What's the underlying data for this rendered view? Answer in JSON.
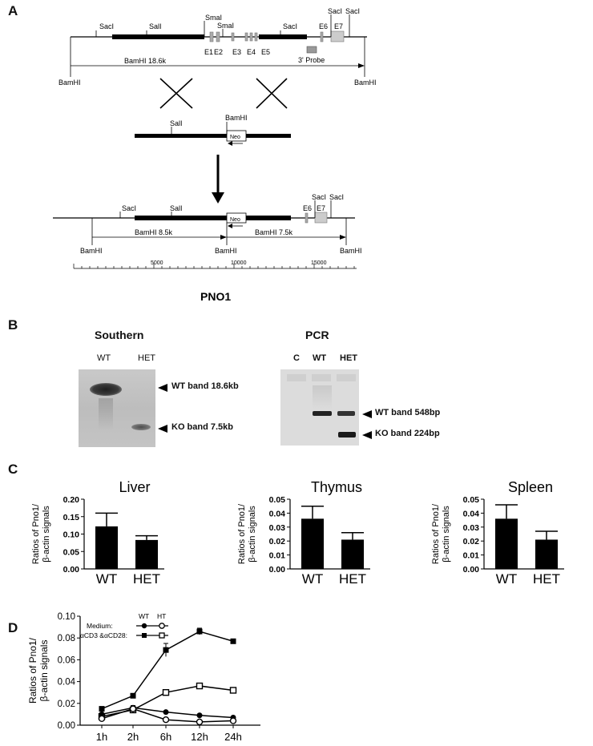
{
  "panels": [
    "A",
    "B",
    "C",
    "D"
  ],
  "panel_a": {
    "wt_labels": [
      "SacI",
      "SalI",
      "SmaI",
      "SmaI",
      "SacI",
      "SacI",
      "SacI"
    ],
    "exons": [
      "E1",
      "E2",
      "E3",
      "E4",
      "E5",
      "E6",
      "E7"
    ],
    "probe_label": "3' Probe",
    "wt_fragment": "BamHI 18.6k",
    "bamhi": "BamHI",
    "vector_sali": "SalI",
    "vector_bamhi": "BamHI",
    "neo": "Neo",
    "ko_labels": [
      "SacI",
      "SalI",
      "SacI",
      "SacI"
    ],
    "ko_exons": [
      "E6",
      "E7"
    ],
    "ko_frag_left": "BamHI 8.5k",
    "ko_frag_right": "BamHI 7.5k",
    "scale_ticks": [
      "5000",
      "10000",
      "15000"
    ],
    "gene_name": "PNO1"
  },
  "panel_b": {
    "southern_title": "Southern",
    "southern_lanes": [
      "WT",
      "HET"
    ],
    "southern_bands": [
      "WT band 18.6kb",
      "KO band 7.5kb"
    ],
    "pcr_title": "PCR",
    "pcr_lanes": [
      "C",
      "WT",
      "HET"
    ],
    "pcr_bands": [
      "WT band 548bp",
      "KO band 224bp"
    ]
  },
  "chart_data": [
    {
      "type": "bar",
      "title": "Liver",
      "ylabel": "Ratios of Pno1/ β-actin signals",
      "categories": [
        "WT",
        "HET"
      ],
      "values": [
        0.122,
        0.083
      ],
      "errors": [
        0.038,
        0.012
      ],
      "ylim": [
        0,
        0.2
      ],
      "yticks": [
        "0.00",
        "0.05",
        "0.10",
        "0.15",
        "0.20"
      ]
    },
    {
      "type": "bar",
      "title": "Thymus",
      "ylabel": "Ratios of Pno1/ β-actin signals",
      "categories": [
        "WT",
        "HET"
      ],
      "values": [
        0.036,
        0.021
      ],
      "errors": [
        0.009,
        0.005
      ],
      "ylim": [
        0,
        0.05
      ],
      "yticks": [
        "0.00",
        "0.01",
        "0.02",
        "0.03",
        "0.04",
        "0.05"
      ]
    },
    {
      "type": "bar",
      "title": "Spleen",
      "ylabel": "Ratios of Pno1/ β-actin signals",
      "categories": [
        "WT",
        "HET"
      ],
      "values": [
        0.036,
        0.021
      ],
      "errors": [
        0.01,
        0.006
      ],
      "ylim": [
        0,
        0.05
      ],
      "yticks": [
        "0.00",
        "0.01",
        "0.02",
        "0.03",
        "0.04",
        "0.05"
      ]
    },
    {
      "type": "line",
      "ylabel": "Ratios of Pno1/ β-actin signals",
      "x": [
        "1h",
        "2h",
        "6h",
        "12h",
        "24h"
      ],
      "ylim": [
        0,
        0.1
      ],
      "yticks": [
        "0.00",
        "0.02",
        "0.04",
        "0.06",
        "0.08",
        "0.10"
      ],
      "legend_header": [
        "WT",
        "HT"
      ],
      "legend_rows": [
        "Medium:",
        "αCD3 &αCD28:"
      ],
      "series": [
        {
          "values": [
            0.015,
            0.027,
            0.069,
            0.086,
            0.077
          ],
          "errors": [
            0.001,
            0.002,
            0.006,
            0.003,
            0.001
          ],
          "marker": "filled-square"
        },
        {
          "values": [
            0.008,
            0.014,
            0.03,
            0.036,
            0.032
          ],
          "errors": [
            0.001,
            0.002,
            0.002,
            0.001,
            0.002
          ],
          "marker": "open-square"
        },
        {
          "values": [
            0.01,
            0.016,
            0.012,
            0.009,
            0.007
          ],
          "errors": [
            0.001,
            0.002,
            0.001,
            0.001,
            0.001
          ],
          "marker": "filled-circle"
        },
        {
          "values": [
            0.006,
            0.015,
            0.005,
            0.003,
            0.004
          ],
          "errors": [
            0.001,
            0.001,
            0.001,
            0.001,
            0.001
          ],
          "marker": "open-circle"
        }
      ]
    }
  ]
}
